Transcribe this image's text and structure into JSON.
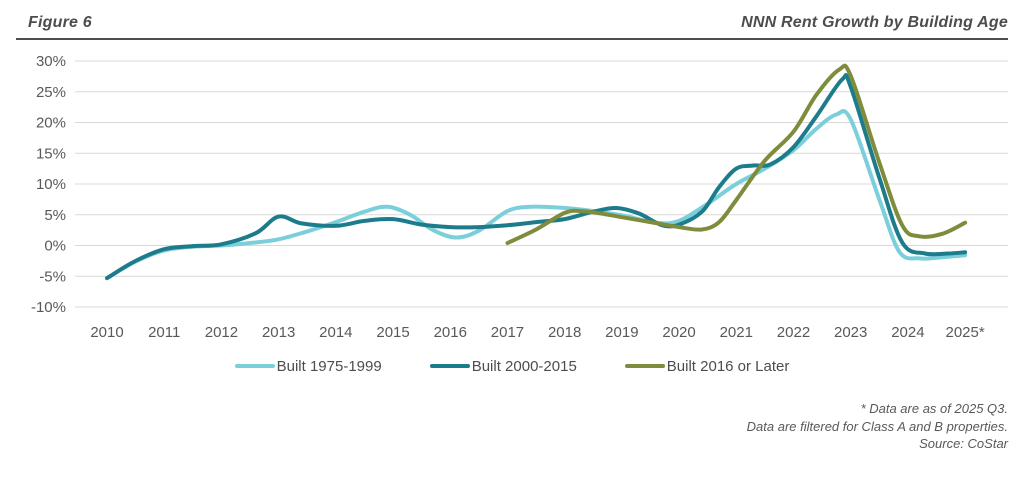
{
  "header": {
    "figure_label": "Figure 6",
    "title": "NNN Rent Growth by Building Age"
  },
  "chart_data": {
    "type": "line",
    "title": "NNN Rent Growth by Building Age",
    "xlabel": "",
    "ylabel": "",
    "ylim": [
      -10,
      30
    ],
    "y_ticks": [
      30,
      25,
      20,
      15,
      10,
      5,
      0,
      -5,
      -10
    ],
    "y_tick_suffix": "%",
    "x_ticks": [
      {
        "year": 2010,
        "label": "2010"
      },
      {
        "year": 2011,
        "label": "2011"
      },
      {
        "year": 2012,
        "label": "2012"
      },
      {
        "year": 2013,
        "label": "2013"
      },
      {
        "year": 2014,
        "label": "2014"
      },
      {
        "year": 2015,
        "label": "2015"
      },
      {
        "year": 2016,
        "label": "2016"
      },
      {
        "year": 2017,
        "label": "2017"
      },
      {
        "year": 2018,
        "label": "2018"
      },
      {
        "year": 2019,
        "label": "2019"
      },
      {
        "year": 2020,
        "label": "2020"
      },
      {
        "year": 2021,
        "label": "2021"
      },
      {
        "year": 2022,
        "label": "2022"
      },
      {
        "year": 2023,
        "label": "2023"
      },
      {
        "year": 2024,
        "label": "2024"
      },
      {
        "year": 2025,
        "label": "2025*"
      }
    ],
    "grid": true,
    "grid_color": "#d9d9d9",
    "axis_text_color": "#595959",
    "legend_position": "bottom",
    "series": [
      {
        "name": "Built 1975-1999",
        "color": "#7bcfda",
        "points": [
          [
            2010,
            -5.3
          ],
          [
            2010.5,
            -2.6
          ],
          [
            2011,
            -0.8
          ],
          [
            2011.5,
            -0.2
          ],
          [
            2012,
            0.0
          ],
          [
            2012.5,
            0.4
          ],
          [
            2013,
            1.0
          ],
          [
            2013.5,
            2.3
          ],
          [
            2014,
            3.8
          ],
          [
            2014.5,
            5.5
          ],
          [
            2014.9,
            6.3
          ],
          [
            2015.3,
            5.0
          ],
          [
            2015.7,
            2.5
          ],
          [
            2016.1,
            1.3
          ],
          [
            2016.5,
            2.4
          ],
          [
            2017,
            5.6
          ],
          [
            2017.4,
            6.3
          ],
          [
            2018,
            6.1
          ],
          [
            2018.5,
            5.6
          ],
          [
            2019,
            4.9
          ],
          [
            2019.6,
            3.7
          ],
          [
            2020,
            4.0
          ],
          [
            2020.5,
            6.8
          ],
          [
            2021,
            10.0
          ],
          [
            2021.5,
            12.5
          ],
          [
            2022,
            15.5
          ],
          [
            2022.4,
            19.0
          ],
          [
            2022.75,
            21.3
          ],
          [
            2023,
            20.5
          ],
          [
            2023.5,
            7.5
          ],
          [
            2023.85,
            -1.0
          ],
          [
            2024.2,
            -2.1
          ],
          [
            2024.6,
            -1.9
          ],
          [
            2025,
            -1.6
          ]
        ]
      },
      {
        "name": "Built 2000-2015",
        "color": "#1d7c8c",
        "points": [
          [
            2010,
            -5.3
          ],
          [
            2010.5,
            -2.5
          ],
          [
            2011,
            -0.6
          ],
          [
            2011.5,
            -0.1
          ],
          [
            2012,
            0.2
          ],
          [
            2012.6,
            2.0
          ],
          [
            2013,
            4.7
          ],
          [
            2013.4,
            3.6
          ],
          [
            2014,
            3.2
          ],
          [
            2014.5,
            4.0
          ],
          [
            2015,
            4.3
          ],
          [
            2015.5,
            3.4
          ],
          [
            2016,
            3.0
          ],
          [
            2016.5,
            3.0
          ],
          [
            2017,
            3.3
          ],
          [
            2017.5,
            3.8
          ],
          [
            2018,
            4.3
          ],
          [
            2018.5,
            5.5
          ],
          [
            2018.9,
            6.1
          ],
          [
            2019.3,
            5.2
          ],
          [
            2019.7,
            3.3
          ],
          [
            2020,
            3.4
          ],
          [
            2020.4,
            5.5
          ],
          [
            2020.7,
            9.5
          ],
          [
            2021,
            12.5
          ],
          [
            2021.3,
            13.0
          ],
          [
            2021.6,
            13.2
          ],
          [
            2022,
            16.0
          ],
          [
            2022.4,
            21.0
          ],
          [
            2022.85,
            27.0
          ],
          [
            2023,
            25.8
          ],
          [
            2023.5,
            11.0
          ],
          [
            2023.9,
            0.5
          ],
          [
            2024.3,
            -1.3
          ],
          [
            2024.7,
            -1.3
          ],
          [
            2025,
            -1.1
          ]
        ]
      },
      {
        "name": "Built 2016 or Later",
        "color": "#7e8c3b",
        "points": [
          [
            2017,
            0.4
          ],
          [
            2017.5,
            2.6
          ],
          [
            2018,
            5.3
          ],
          [
            2018.3,
            5.6
          ],
          [
            2018.7,
            5.1
          ],
          [
            2019,
            4.6
          ],
          [
            2019.5,
            3.8
          ],
          [
            2020,
            3.0
          ],
          [
            2020.4,
            2.6
          ],
          [
            2020.7,
            3.8
          ],
          [
            2021,
            7.4
          ],
          [
            2021.5,
            13.8
          ],
          [
            2022,
            18.5
          ],
          [
            2022.4,
            24.5
          ],
          [
            2022.8,
            28.6
          ],
          [
            2023,
            27.6
          ],
          [
            2023.5,
            13.5
          ],
          [
            2023.9,
            3.3
          ],
          [
            2024.2,
            1.5
          ],
          [
            2024.6,
            1.9
          ],
          [
            2025,
            3.7
          ]
        ]
      }
    ]
  },
  "footnotes": {
    "line1": "* Data are as of 2025 Q3.",
    "line2": "Data are filtered for Class A and B properties.",
    "line3": "Source: CoStar"
  }
}
